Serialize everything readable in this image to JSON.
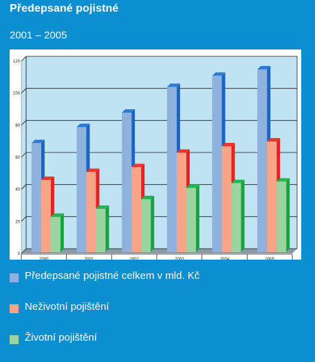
{
  "title": "Předepsané pojistné",
  "subtitle": "2001 – 2005",
  "colors": {
    "page_bg": "#0b8fd0",
    "plot_bg": "#bfe3f3",
    "frame_bg": "#ffffff",
    "floor": "#8a9aa6",
    "grid": "#1a1a1a"
  },
  "chart_data": {
    "type": "bar",
    "categories": [
      "2000",
      "2001",
      "2002",
      "2003",
      "2004",
      "2005"
    ],
    "ylim": [
      0,
      120
    ],
    "yticks": [
      "0",
      "20",
      "40",
      "60",
      "80",
      "100",
      "120"
    ],
    "grid": true,
    "legend_position": "bottom",
    "series": [
      {
        "name": "Předepsané pojistné celkem v mld. Kč",
        "values": [
          68,
          78,
          87,
          103,
          110,
          114
        ],
        "front": "#8fb1de",
        "side": "#1a64c4",
        "top": "#2e7bd6"
      },
      {
        "name": "Neživotní pojištění",
        "values": [
          45,
          50,
          53,
          62,
          66,
          69
        ],
        "front": "#f7a488",
        "side": "#e4221f",
        "top": "#f0352c"
      },
      {
        "name": "Životní pojištění",
        "values": [
          22,
          27,
          33,
          40,
          43,
          44
        ],
        "front": "#9bd4a0",
        "side": "#16a23c",
        "top": "#1fb84a"
      }
    ]
  }
}
